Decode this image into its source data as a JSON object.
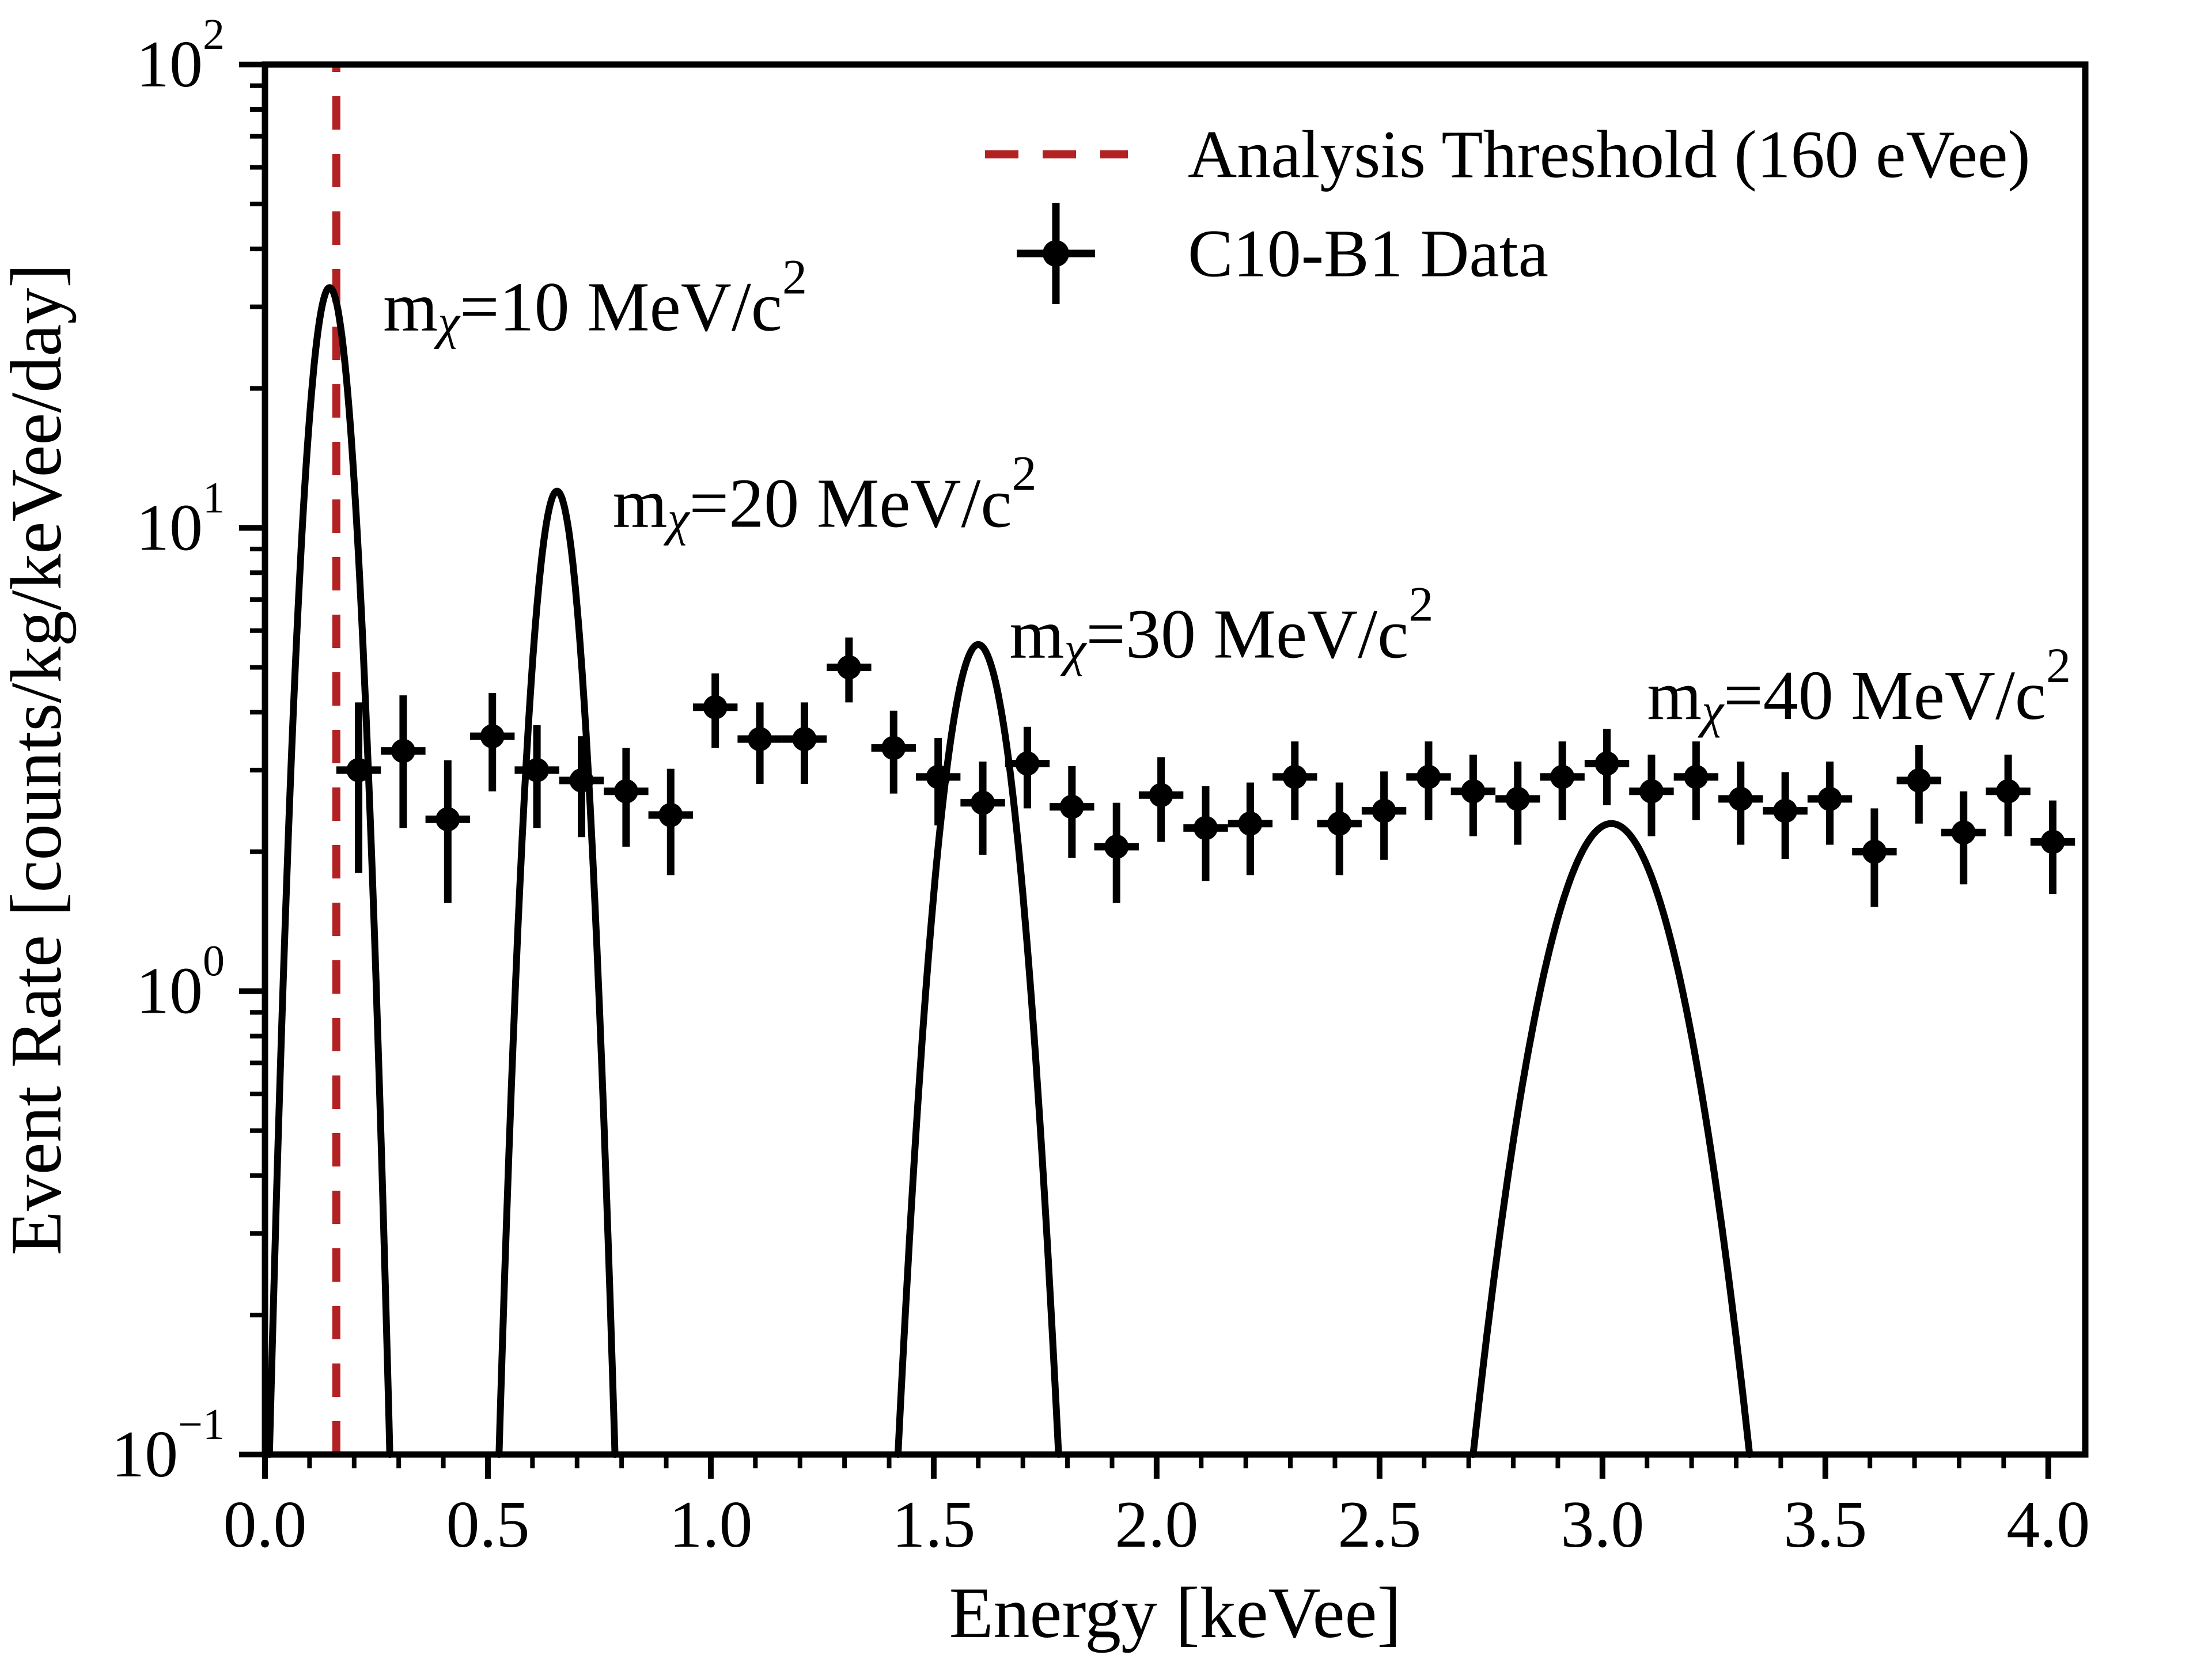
{
  "chart_data": {
    "type": "scatter",
    "title": "",
    "xlabel": "Energy [keVee]",
    "ylabel": "Event Rate [counts/kg/keVee/day]",
    "x_axis": {
      "min": 0.0,
      "max": 4.083,
      "major_ticks": [
        0.0,
        0.5,
        1.0,
        1.5,
        2.0,
        2.5,
        3.0,
        3.5,
        4.0
      ],
      "minor_step": 0.1,
      "scale": "linear"
    },
    "y_axis": {
      "min": 0.1,
      "max": 100,
      "major_tick_exponents": [
        2,
        1,
        0,
        -1
      ],
      "tick_label_base": "10",
      "scale": "log"
    },
    "grid": false,
    "colors": {
      "data": "#000000",
      "signal_curves": "#000000",
      "threshold": "#B22222"
    },
    "threshold_line": {
      "x_kevee": 0.16,
      "style": "dashed",
      "color": "#B22222"
    },
    "legend": {
      "position": "upper right",
      "entries": [
        {
          "label": "Analysis Threshold (160 eVee)",
          "type": "dashed-line",
          "color": "#B22222"
        },
        {
          "label": "C10-B1 Data",
          "type": "errorbar-marker",
          "color": "#000000"
        }
      ]
    },
    "signal_curves": [
      {
        "mass_mev": 10,
        "center_kevee": 0.145,
        "peak_rate": 33.0,
        "log_width": 0.0851,
        "label_prefix": "m",
        "label_sub": "χ",
        "label_mid": "=10 MeV/c",
        "label_sup": "2",
        "label_anchor": [
          0.265,
          30.0
        ]
      },
      {
        "mass_mev": 20,
        "center_kevee": 0.655,
        "peak_rate": 12.0,
        "log_width": 0.0902,
        "label_prefix": "m",
        "label_sub": "χ",
        "label_mid": "=20 MeV/c",
        "label_sup": "2",
        "label_anchor": [
          0.78,
          11.3
        ]
      },
      {
        "mass_mev": 30,
        "center_kevee": 1.6,
        "peak_rate": 5.6,
        "log_width": 0.1362,
        "label_prefix": "m",
        "label_sub": "χ",
        "label_mid": "=30 MeV/c",
        "label_sup": "2",
        "label_anchor": [
          1.67,
          5.9
        ]
      },
      {
        "mass_mev": 40,
        "center_kevee": 3.02,
        "peak_rate": 2.3,
        "log_width": 0.2657,
        "label_prefix": "m",
        "label_sub": "χ",
        "label_mid": "=40 MeV/c",
        "label_sup": "2",
        "label_anchor": [
          3.1,
          4.35
        ]
      }
    ],
    "data_series": {
      "name": "C10-B1 Data",
      "x_err_kevee": 0.05,
      "points_format": [
        "energy_kevee",
        "rate",
        "rate_err"
      ],
      "points": [
        [
          0.21,
          3.0,
          1.2
        ],
        [
          0.31,
          3.3,
          1.05
        ],
        [
          0.41,
          2.35,
          0.8
        ],
        [
          0.51,
          3.55,
          0.85
        ],
        [
          0.61,
          3.0,
          0.75
        ],
        [
          0.71,
          2.85,
          0.7
        ],
        [
          0.81,
          2.7,
          0.65
        ],
        [
          0.91,
          2.4,
          0.62
        ],
        [
          1.01,
          4.1,
          0.75
        ],
        [
          1.11,
          3.5,
          0.7
        ],
        [
          1.21,
          3.5,
          0.7
        ],
        [
          1.31,
          5.0,
          0.8
        ],
        [
          1.41,
          3.35,
          0.68
        ],
        [
          1.51,
          2.9,
          0.62
        ],
        [
          1.61,
          2.55,
          0.58
        ],
        [
          1.71,
          3.1,
          0.62
        ],
        [
          1.81,
          2.5,
          0.56
        ],
        [
          1.91,
          2.05,
          0.5
        ],
        [
          2.01,
          2.65,
          0.55
        ],
        [
          2.11,
          2.25,
          0.52
        ],
        [
          2.21,
          2.3,
          0.52
        ],
        [
          2.31,
          2.9,
          0.56
        ],
        [
          2.41,
          2.3,
          0.52
        ],
        [
          2.51,
          2.45,
          0.53
        ],
        [
          2.61,
          2.9,
          0.56
        ],
        [
          2.71,
          2.7,
          0.54
        ],
        [
          2.81,
          2.6,
          0.53
        ],
        [
          2.91,
          2.9,
          0.56
        ],
        [
          3.01,
          3.1,
          0.58
        ],
        [
          3.11,
          2.7,
          0.54
        ],
        [
          3.21,
          2.9,
          0.56
        ],
        [
          3.31,
          2.6,
          0.53
        ],
        [
          3.41,
          2.45,
          0.52
        ],
        [
          3.51,
          2.6,
          0.53
        ],
        [
          3.61,
          2.0,
          0.48
        ],
        [
          3.71,
          2.85,
          0.55
        ],
        [
          3.81,
          2.2,
          0.5
        ],
        [
          3.91,
          2.7,
          0.54
        ],
        [
          4.01,
          2.1,
          0.48
        ]
      ]
    }
  }
}
